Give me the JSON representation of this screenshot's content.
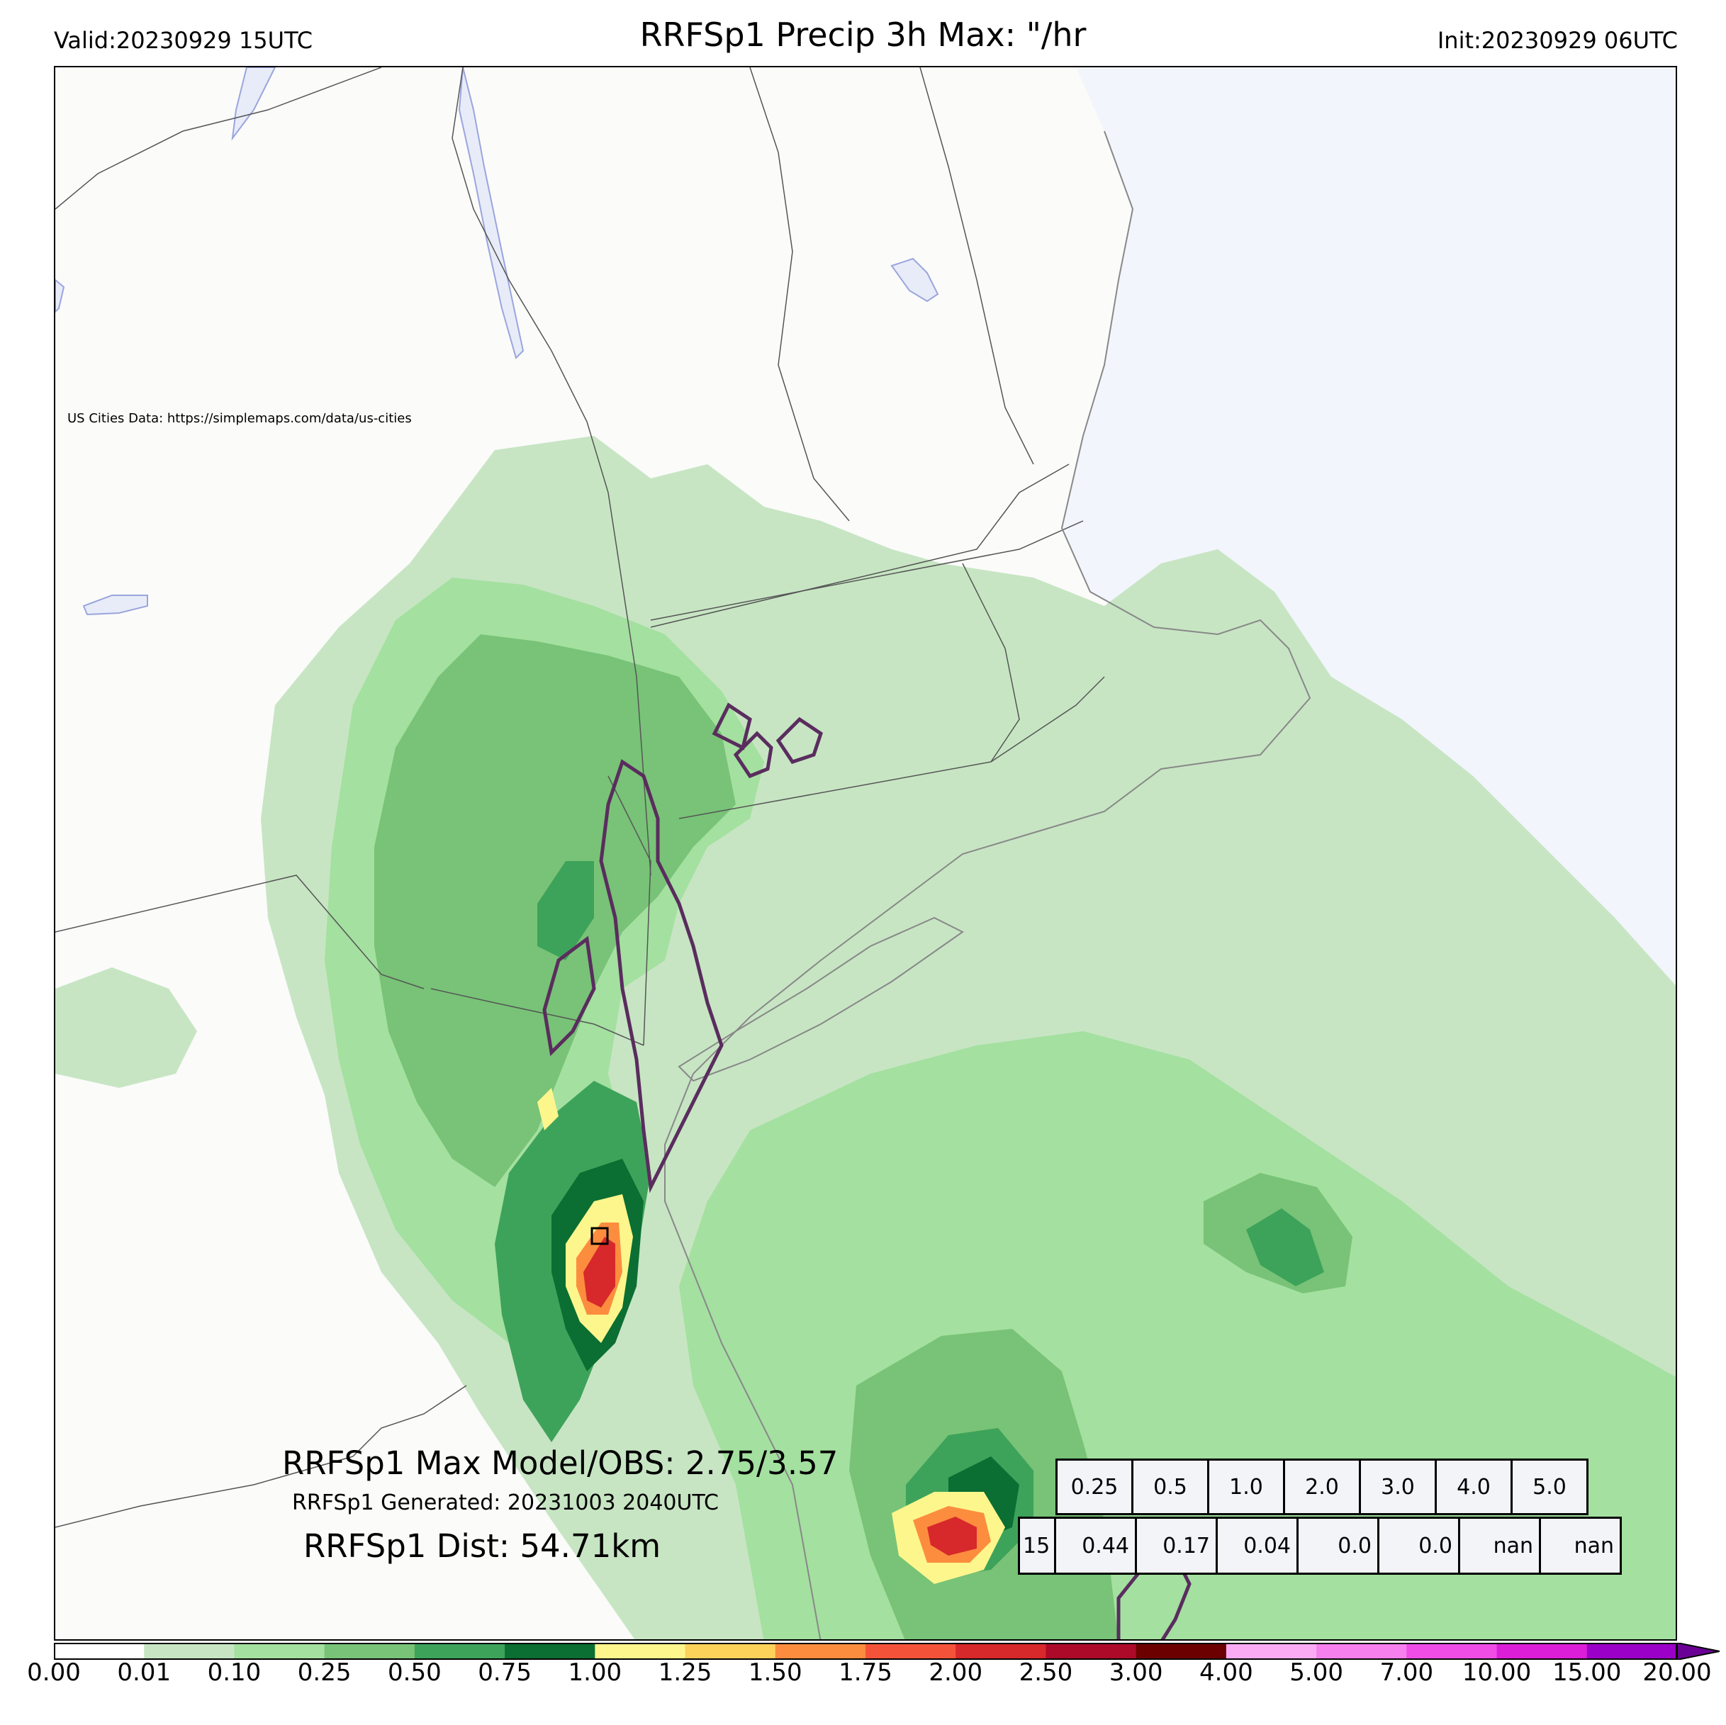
{
  "header": {
    "title": "RRFSp1 Precip 3h Max: \"/hr",
    "valid": "Valid:20230929 15UTC",
    "init": "Init:20230929 06UTC"
  },
  "map": {
    "cities_credit": "US Cities Data: https://simplemaps.com/data/us-cities",
    "colors": {
      "land": "#fbfbfa",
      "water": "#f2f5fb",
      "lakes": "#e8ecf8",
      "borders": "#555555",
      "obs_contour": "#5a2d5e"
    }
  },
  "stats": {
    "max_model_obs": "RRFSp1 Max Model/OBS: 2.75/3.57",
    "generated": "RRFSp1 Generated: 20231003 2040UTC",
    "dist": "RRFSp1 Dist: 54.71km"
  },
  "threshold_table": {
    "thresholds": [
      "0.25",
      "0.5",
      "1.0",
      "2.0",
      "3.0",
      "4.0",
      "5.0"
    ],
    "row_label": "15",
    "values": [
      "0.44",
      "0.17",
      "0.04",
      "0.0",
      "0.0",
      "nan",
      "nan"
    ]
  },
  "colorbar": {
    "levels": [
      "0.00",
      "0.01",
      "0.10",
      "0.25",
      "0.50",
      "0.75",
      "1.00",
      "1.25",
      "1.50",
      "1.75",
      "2.00",
      "2.50",
      "3.00",
      "4.00",
      "5.00",
      "7.00",
      "10.00",
      "15.00",
      "20.00"
    ],
    "colors": [
      "#ffffff",
      "#c7e5c3",
      "#a4e0a0",
      "#78c377",
      "#3ea35a",
      "#0b6e32",
      "#fdf68c",
      "#fdd25a",
      "#fc8d3f",
      "#f4533a",
      "#d7282b",
      "#ad0a2a",
      "#6c0000",
      "#faabf3",
      "#f680ee",
      "#ef4de6",
      "#dc1ed8",
      "#9b00c9"
    ],
    "extend_color": "#6a0096"
  }
}
